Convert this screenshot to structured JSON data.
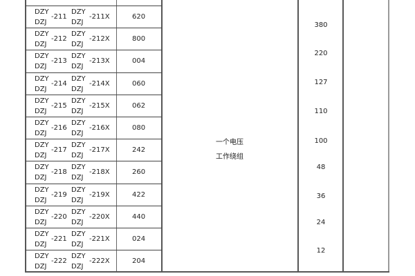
{
  "table": {
    "rows": [
      {
        "prefix_top": "DZY",
        "prefix_bottom": "DZJ",
        "code": "-211",
        "x_prefix_top": "DZY",
        "x_prefix_bottom": "DZJ",
        "x_code": "-211X",
        "value": "620"
      },
      {
        "prefix_top": "DZY",
        "prefix_bottom": "DZJ",
        "code": "-212",
        "x_prefix_top": "DZY",
        "x_prefix_bottom": "DZJ",
        "x_code": "-212X",
        "value": "800"
      },
      {
        "prefix_top": "DZY",
        "prefix_bottom": "DZJ",
        "code": "-213",
        "x_prefix_top": "DZY",
        "x_prefix_bottom": "DZJ",
        "x_code": "-213X",
        "value": "004"
      },
      {
        "prefix_top": "DZY",
        "prefix_bottom": "DZJ",
        "code": "-214",
        "x_prefix_top": "DZY",
        "x_prefix_bottom": "DZJ",
        "x_code": "-214X",
        "value": "060"
      },
      {
        "prefix_top": "DZY",
        "prefix_bottom": "DZJ",
        "code": "-215",
        "x_prefix_top": "DZY",
        "x_prefix_bottom": "DZJ",
        "x_code": "-215X",
        "value": "062"
      },
      {
        "prefix_top": "DZY",
        "prefix_bottom": "DZJ",
        "code": "-216",
        "x_prefix_top": "DZY",
        "x_prefix_bottom": "DZJ",
        "x_code": "-216X",
        "value": "080"
      },
      {
        "prefix_top": "DZY",
        "prefix_bottom": "DZJ",
        "code": "-217",
        "x_prefix_top": "DZY",
        "x_prefix_bottom": "DZJ",
        "x_code": "-217X",
        "value": "242"
      },
      {
        "prefix_top": "DZY",
        "prefix_bottom": "DZJ",
        "code": "-218",
        "x_prefix_top": "DZY",
        "x_prefix_bottom": "DZJ",
        "x_code": "-218X",
        "value": "260"
      },
      {
        "prefix_top": "DZY",
        "prefix_bottom": "DZJ",
        "code": "-219",
        "x_prefix_top": "DZY",
        "x_prefix_bottom": "DZJ",
        "x_code": "-219X",
        "value": "422"
      },
      {
        "prefix_top": "DZY",
        "prefix_bottom": "DZJ",
        "code": "-220",
        "x_prefix_top": "DZY",
        "x_prefix_bottom": "DZJ",
        "x_code": "-220X",
        "value": "440"
      },
      {
        "prefix_top": "DZY",
        "prefix_bottom": "DZJ",
        "code": "-221",
        "x_prefix_top": "DZY",
        "x_prefix_bottom": "DZJ",
        "x_code": "-221X",
        "value": "024"
      },
      {
        "prefix_top": "DZY",
        "prefix_bottom": "DZJ",
        "code": "-222",
        "x_prefix_top": "DZY",
        "x_prefix_bottom": "DZJ",
        "x_code": "-222X",
        "value": "204"
      }
    ],
    "winding_line1": "一个电压",
    "winding_line2": "工作绕组",
    "voltages": [
      "380",
      "220",
      "127",
      "110",
      "100",
      "48",
      "36",
      "24",
      "12"
    ]
  }
}
